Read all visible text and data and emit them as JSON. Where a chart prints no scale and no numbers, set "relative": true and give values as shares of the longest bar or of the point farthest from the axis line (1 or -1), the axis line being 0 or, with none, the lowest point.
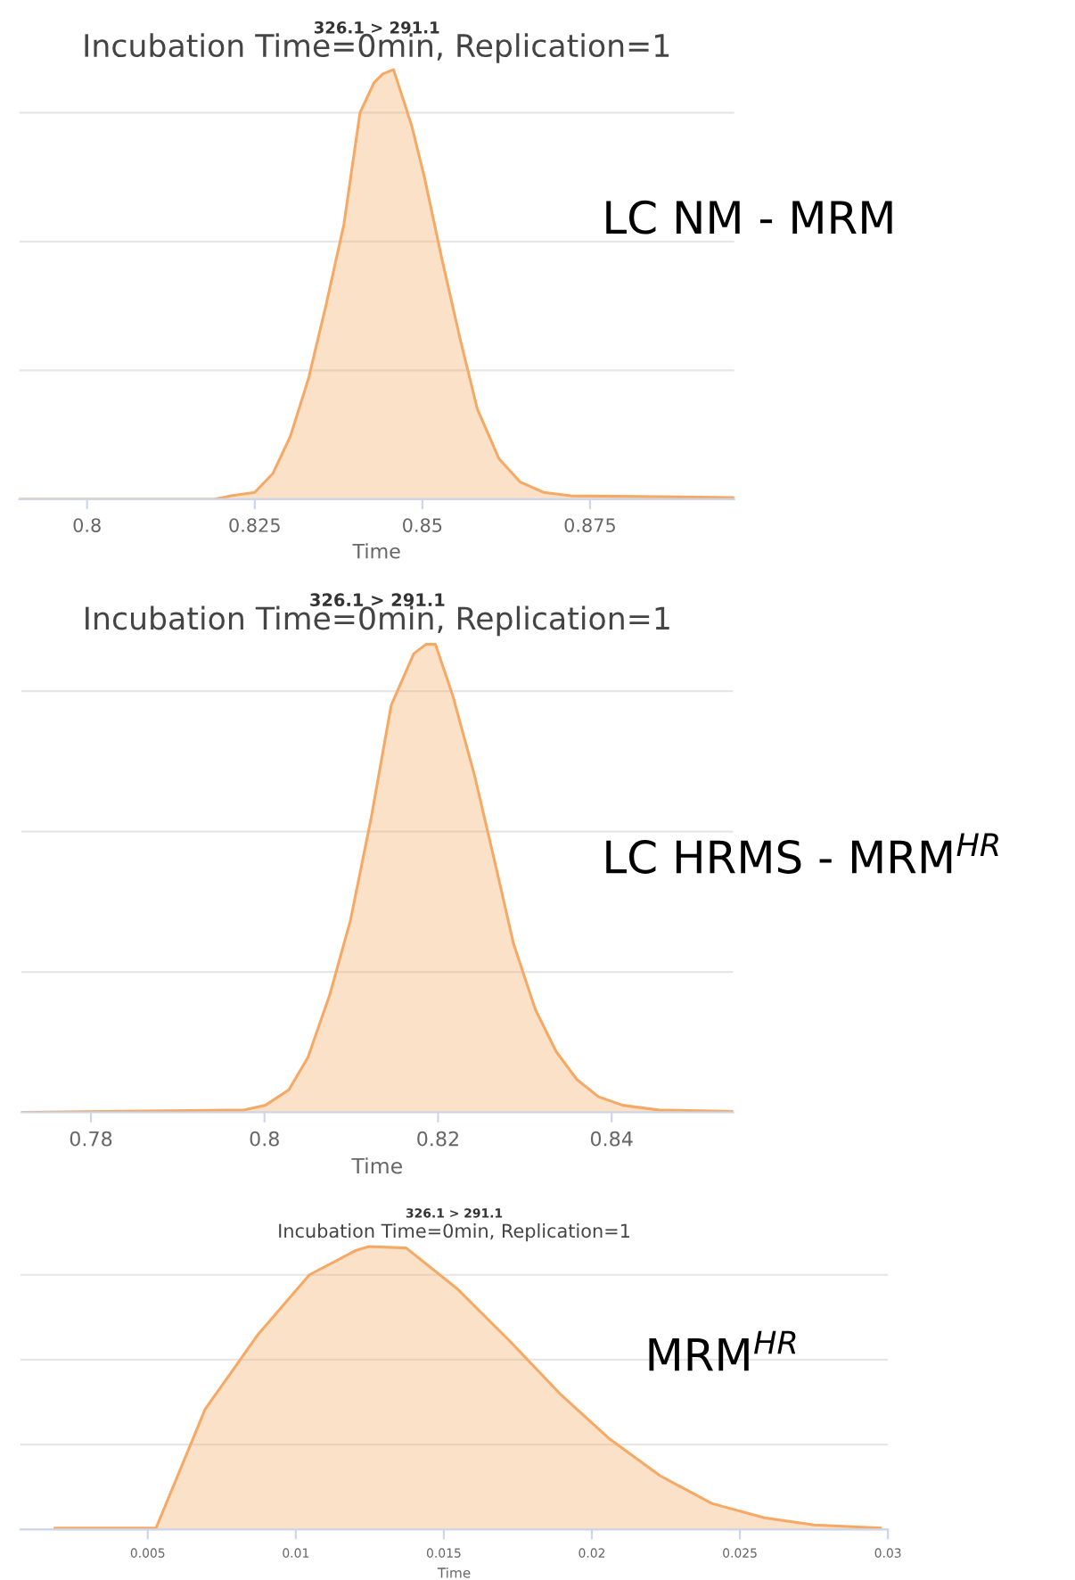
{
  "chart_data": [
    {
      "type": "area",
      "title": "326.1 > 291.1",
      "subtitle": "Incubation Time=0min, Replication=1",
      "xlabel": "Time",
      "annotations": [
        "LC NM - MRM"
      ],
      "relative": true,
      "grid": "y",
      "xlim": [
        0.7899,
        0.8965
      ],
      "xticks": [
        0.8,
        0.825,
        0.85,
        0.875
      ],
      "series": [
        {
          "color": "#f5a965",
          "x": [
            0.7899,
            0.8189,
            0.8215,
            0.825,
            0.8277,
            0.8303,
            0.833,
            0.8356,
            0.8383,
            0.8407,
            0.8428,
            0.8441,
            0.8457,
            0.8484,
            0.8503,
            0.8529,
            0.8556,
            0.8582,
            0.8614,
            0.8646,
            0.8681,
            0.8721,
            0.8965
          ],
          "values": [
            0,
            0,
            0.008,
            0.016,
            0.06,
            0.146,
            0.28,
            0.45,
            0.64,
            0.9,
            0.97,
            0.99,
            1.0,
            0.87,
            0.75,
            0.56,
            0.375,
            0.21,
            0.095,
            0.04,
            0.016,
            0.008,
            0.004
          ]
        }
      ]
    },
    {
      "type": "area",
      "title": "326.1 > 291.1",
      "subtitle": "Incubation Time=0min, Replication=1",
      "xlabel": "Time",
      "annotations": [
        "LC HRMS - MRM$^{HR}$"
      ],
      "relative": true,
      "grid": "y",
      "xlim": [
        0.772,
        0.854
      ],
      "xticks": [
        0.78,
        0.8,
        0.82,
        0.84
      ],
      "series": [
        {
          "color": "#f5a965",
          "x": [
            0.772,
            0.7977,
            0.8001,
            0.8028,
            0.805,
            0.8075,
            0.8099,
            0.8123,
            0.8146,
            0.8172,
            0.8186,
            0.8197,
            0.8217,
            0.8242,
            0.8266,
            0.8287,
            0.8312,
            0.8336,
            0.836,
            0.8385,
            0.8413,
            0.8454,
            0.854
          ],
          "values": [
            0,
            0.005,
            0.015,
            0.048,
            0.117,
            0.25,
            0.41,
            0.63,
            0.87,
            0.98,
            1.0,
            1.0,
            0.89,
            0.72,
            0.53,
            0.36,
            0.22,
            0.13,
            0.07,
            0.033,
            0.015,
            0.005,
            0.002
          ]
        }
      ]
    },
    {
      "type": "area",
      "title": "326.1 > 291.1",
      "subtitle": "Incubation Time=0min, Replication=1",
      "xlabel": "Time",
      "annotations": [
        "MRM$^{HR}$"
      ],
      "relative": true,
      "grid": "y",
      "xlim": [
        0.0007,
        0.03
      ],
      "xticks": [
        0.005,
        0.01,
        0.015,
        0.02,
        0.025,
        0.03
      ],
      "series": [
        {
          "color": "#f5a965",
          "x": [
            0.00187,
            0.00528,
            0.00694,
            0.00873,
            0.01046,
            0.012,
            0.01247,
            0.01373,
            0.01546,
            0.01719,
            0.01892,
            0.0206,
            0.0223,
            0.02405,
            0.02583,
            0.02751,
            0.02975
          ],
          "values": [
            0.005,
            0.005,
            0.425,
            0.69,
            0.9,
            0.985,
            1.0,
            0.995,
            0.85,
            0.67,
            0.48,
            0.32,
            0.19,
            0.092,
            0.041,
            0.016,
            0.005
          ]
        }
      ]
    }
  ]
}
